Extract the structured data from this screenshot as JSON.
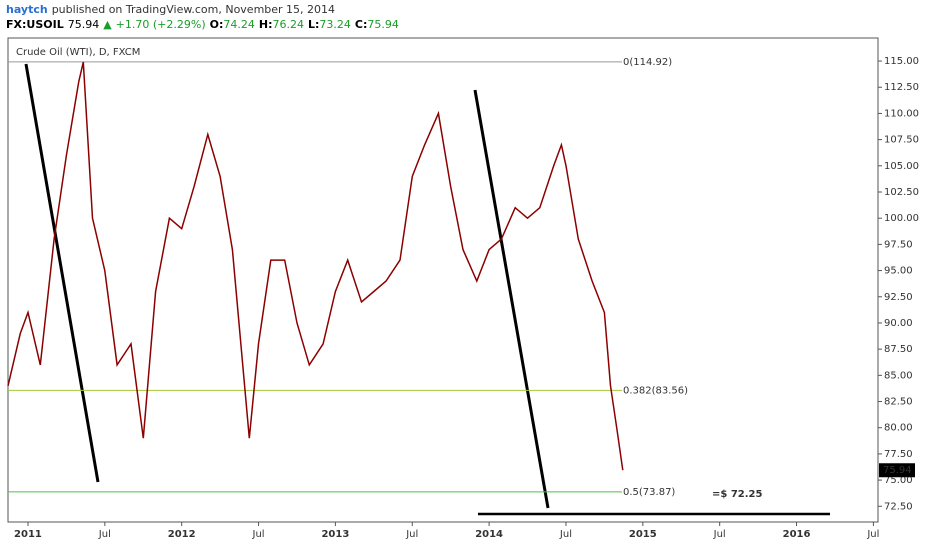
{
  "header": {
    "user": "haytch",
    "published": "published on TradingView.com, November 15, 2014"
  },
  "quote": [
    {
      "text": "FX:USOIL",
      "color": "#000000",
      "bold": true
    },
    {
      "text": "75.94",
      "color": "#000000",
      "bold": false
    },
    {
      "text": "▲",
      "color": "#1a9e2a",
      "bold": false
    },
    {
      "text": "+1.70 (+2.29%)",
      "color": "#1a9e2a",
      "bold": false
    },
    {
      "text": "O:",
      "color": "#000000",
      "bold": true
    },
    {
      "text": "74.24",
      "color": "#1a9e2a",
      "bold": false
    },
    {
      "text": "H:",
      "color": "#000000",
      "bold": true
    },
    {
      "text": "76.24",
      "color": "#1a9e2a",
      "bold": false
    },
    {
      "text": "L:",
      "color": "#000000",
      "bold": true
    },
    {
      "text": "73.24",
      "color": "#1a9e2a",
      "bold": false
    },
    {
      "text": "C:",
      "color": "#000000",
      "bold": true
    },
    {
      "text": "75.94",
      "color": "#1a9e2a",
      "bold": false
    }
  ],
  "chart_data": {
    "type": "line",
    "title": "Crude Oil (WTI), D, FXCM",
    "x": [
      2010.87,
      2010.95,
      2011.0,
      2011.08,
      2011.17,
      2011.25,
      2011.33,
      2011.36,
      2011.42,
      2011.5,
      2011.58,
      2011.67,
      2011.75,
      2011.83,
      2011.92,
      2012.0,
      2012.08,
      2012.17,
      2012.25,
      2012.33,
      2012.44,
      2012.5,
      2012.58,
      2012.67,
      2012.75,
      2012.83,
      2012.92,
      2013.0,
      2013.08,
      2013.17,
      2013.25,
      2013.33,
      2013.42,
      2013.5,
      2013.58,
      2013.67,
      2013.75,
      2013.83,
      2013.92,
      2014.0,
      2014.08,
      2014.17,
      2014.25,
      2014.33,
      2014.42,
      2014.47,
      2014.5,
      2014.58,
      2014.67,
      2014.75,
      2014.79,
      2014.83,
      2014.87
    ],
    "series": [
      {
        "name": "FX:USOIL",
        "color": "#8b0000",
        "values": [
          84,
          89,
          91,
          86,
          98,
          106,
          113,
          114.9,
          100,
          95,
          86,
          88,
          79,
          93,
          100,
          99,
          103,
          108,
          104,
          97,
          79,
          88,
          96,
          96,
          90,
          86,
          88,
          93,
          96,
          92,
          93,
          94,
          96,
          104,
          107,
          110,
          103,
          97,
          94,
          97,
          98,
          101,
          100,
          101,
          105,
          107,
          105,
          98,
          94,
          91,
          84,
          80,
          75.94
        ]
      }
    ],
    "last_price": {
      "value": 75.94,
      "label": "75.94"
    },
    "fib_levels": [
      {
        "price": 114.92,
        "label": "0(114.92)",
        "color": "#999999"
      },
      {
        "price": 83.56,
        "label": "0.382(83.56)",
        "color": "#a6c93a"
      },
      {
        "price": 73.87,
        "label": "0.5(73.87)",
        "color": "#4cc24c"
      }
    ],
    "annotation": "=$ 72.25",
    "xlim": [
      2010.87,
      2016.53
    ],
    "xticks": [
      {
        "value": 2011,
        "label": "2011"
      },
      {
        "value": 2011.5,
        "label": "Jul"
      },
      {
        "value": 2012,
        "label": "2012"
      },
      {
        "value": 2012.5,
        "label": "Jul"
      },
      {
        "value": 2013,
        "label": "2013"
      },
      {
        "value": 2013.5,
        "label": "Jul"
      },
      {
        "value": 2014,
        "label": "2014"
      },
      {
        "value": 2014.5,
        "label": "Jul"
      },
      {
        "value": 2015,
        "label": "2015"
      },
      {
        "value": 2015.5,
        "label": "Jul"
      },
      {
        "value": 2016,
        "label": "2016"
      },
      {
        "value": 2016.5,
        "label": "Jul"
      }
    ],
    "ylim": [
      71,
      117.2
    ],
    "yticks": [
      {
        "value": 72.5,
        "label": "72.50"
      },
      {
        "value": 75,
        "label": "75.00"
      },
      {
        "value": 77.5,
        "label": "77.50"
      },
      {
        "value": 80,
        "label": "80.00"
      },
      {
        "value": 82.5,
        "label": "82.50"
      },
      {
        "value": 85,
        "label": "85.00"
      },
      {
        "value": 87.5,
        "label": "87.50"
      },
      {
        "value": 90,
        "label": "90.00"
      },
      {
        "value": 92.5,
        "label": "92.50"
      },
      {
        "value": 95,
        "label": "95.00"
      },
      {
        "value": 97.5,
        "label": "97.50"
      },
      {
        "value": 100,
        "label": "100.00"
      },
      {
        "value": 102.5,
        "label": "102.50"
      },
      {
        "value": 105,
        "label": "105.00"
      },
      {
        "value": 107.5,
        "label": "107.50"
      },
      {
        "value": 110,
        "label": "110.00"
      },
      {
        "value": 112.5,
        "label": "112.50"
      },
      {
        "value": 115,
        "label": "115.00"
      }
    ],
    "grid": false
  }
}
